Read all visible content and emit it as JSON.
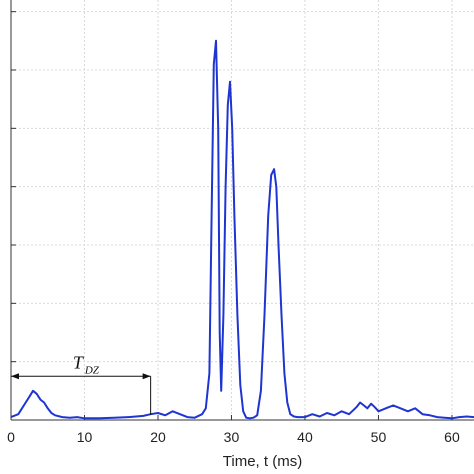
{
  "chart_data": {
    "type": "line",
    "title": "",
    "xlabel": "Time, t (ms)",
    "ylabel": "",
    "xlim": [
      0,
      63
    ],
    "ylim": [
      0,
      7.2
    ],
    "xticks": [
      0,
      10,
      20,
      30,
      40,
      50,
      60
    ],
    "xtick_labels": [
      "0",
      "10",
      "20",
      "30",
      "40",
      "50",
      "60"
    ],
    "grid": true,
    "line_color": "#1f35d1",
    "series": [
      {
        "x": [
          0,
          1,
          2,
          2.5,
          3,
          3.5,
          4,
          4.5,
          5,
          5.5,
          6,
          7,
          8,
          9,
          10,
          12,
          14,
          16,
          18,
          19,
          20,
          21,
          22,
          23,
          24,
          25,
          26,
          26.5,
          27,
          27.3,
          27.6,
          27.9,
          28.2,
          28.4,
          28.6,
          28.9,
          29.2,
          29.5,
          29.8,
          30.1,
          30.4,
          30.8,
          31.2,
          31.6,
          32,
          32.5,
          33,
          33.5,
          34,
          34.5,
          35,
          35.4,
          35.8,
          36.1,
          36.4,
          36.8,
          37.2,
          37.6,
          38,
          38.5,
          39,
          39.5,
          40,
          41,
          42,
          43,
          44,
          45,
          46,
          47,
          47.5,
          48,
          48.5,
          49,
          49.5,
          50,
          51,
          52,
          53,
          54,
          55,
          56,
          57,
          58,
          59,
          60,
          61,
          62,
          63
        ],
        "y": [
          0.05,
          0.1,
          0.3,
          0.4,
          0.5,
          0.45,
          0.35,
          0.3,
          0.2,
          0.12,
          0.08,
          0.05,
          0.04,
          0.05,
          0.03,
          0.03,
          0.04,
          0.05,
          0.07,
          0.1,
          0.12,
          0.08,
          0.15,
          0.1,
          0.05,
          0.04,
          0.1,
          0.2,
          0.8,
          3.5,
          6.1,
          6.5,
          5.0,
          1.5,
          0.5,
          1.8,
          4.0,
          5.4,
          5.8,
          5.0,
          3.5,
          1.8,
          0.6,
          0.15,
          0.04,
          0.03,
          0.04,
          0.08,
          0.5,
          1.8,
          3.5,
          4.2,
          4.3,
          4.0,
          3.0,
          1.8,
          0.8,
          0.3,
          0.1,
          0.06,
          0.05,
          0.05,
          0.05,
          0.1,
          0.06,
          0.12,
          0.08,
          0.15,
          0.1,
          0.22,
          0.3,
          0.25,
          0.2,
          0.28,
          0.22,
          0.15,
          0.2,
          0.25,
          0.2,
          0.15,
          0.2,
          0.1,
          0.08,
          0.05,
          0.04,
          0.03,
          0.05,
          0.06,
          0.05
        ]
      }
    ],
    "annotation": {
      "label": "T",
      "subscript": "DZ",
      "x_start": 0,
      "x_end": 19,
      "y": 0.75
    }
  }
}
